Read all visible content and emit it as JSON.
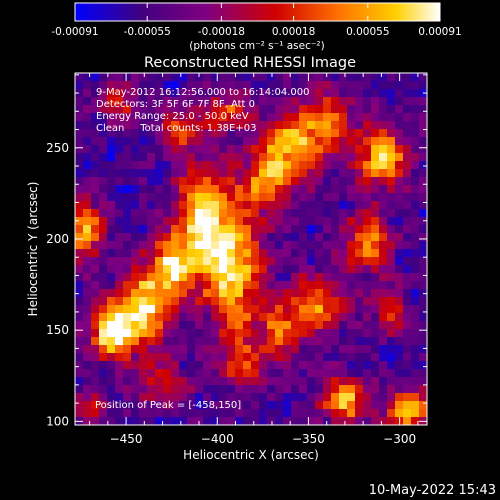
{
  "chart_data": {
    "type": "heatmap",
    "title": "Reconstructed RHESSI Image",
    "xlabel": "Heliocentric X (arcsec)",
    "ylabel": "Heliocentric Y (arcsec)",
    "xlim": [
      -478,
      -285
    ],
    "ylim": [
      98,
      291
    ],
    "x_ticks": [
      -450,
      -400,
      -350,
      -300
    ],
    "y_ticks": [
      100,
      150,
      200,
      250
    ],
    "colorbar": {
      "range": [
        -0.00091,
        0.00091
      ],
      "tick_values": [
        -0.00091,
        -0.00055,
        -0.00018,
        0.00018,
        0.00055,
        0.00091
      ],
      "tick_labels": [
        "-0.00091",
        "-0.00055",
        "-0.00018",
        "0.00018",
        "0.00055",
        "0.00091"
      ],
      "units_label": "(photons cm⁻² s⁻¹ asec⁻²)",
      "colors": [
        "#0000ff",
        "#400080",
        "#800080",
        "#d00000",
        "#ff7000",
        "#ffd000",
        "#ffffff"
      ]
    },
    "annotations": [
      "9-May-2012 16:12:56.000 to 16:14:04.000",
      "Detectors: 3F 5F 6F 7F 8F, Att 0",
      "Energy Range: 25.0 - 50.0 keV",
      "Clean     Total counts: 1.38E+03"
    ],
    "peak_label": "Position of Peak = [-458,150]",
    "peak_position": [
      -458,
      150
    ],
    "blobs": [
      {
        "x": -458,
        "y": 150,
        "sx": 9,
        "sy": 11,
        "a": 1.0
      },
      {
        "x": -440,
        "y": 162,
        "sx": 10,
        "sy": 16,
        "a": 0.85
      },
      {
        "x": -425,
        "y": 185,
        "sx": 9,
        "sy": 12,
        "a": 0.75
      },
      {
        "x": -408,
        "y": 210,
        "sx": 10,
        "sy": 22,
        "a": 0.95
      },
      {
        "x": -390,
        "y": 180,
        "sx": 11,
        "sy": 26,
        "a": 0.85
      },
      {
        "x": -375,
        "y": 230,
        "sx": 9,
        "sy": 12,
        "a": 0.6
      },
      {
        "x": -360,
        "y": 250,
        "sx": 12,
        "sy": 14,
        "a": 0.8
      },
      {
        "x": -340,
        "y": 265,
        "sx": 10,
        "sy": 12,
        "a": 0.55
      },
      {
        "x": -310,
        "y": 245,
        "sx": 10,
        "sy": 12,
        "a": 0.9
      },
      {
        "x": -318,
        "y": 198,
        "sx": 9,
        "sy": 11,
        "a": 0.75
      },
      {
        "x": -345,
        "y": 165,
        "sx": 11,
        "sy": 11,
        "a": 0.7
      },
      {
        "x": -365,
        "y": 150,
        "sx": 8,
        "sy": 10,
        "a": 0.6
      },
      {
        "x": -330,
        "y": 112,
        "sx": 9,
        "sy": 9,
        "a": 0.85
      },
      {
        "x": -295,
        "y": 105,
        "sx": 8,
        "sy": 9,
        "a": 0.85
      },
      {
        "x": -305,
        "y": 160,
        "sx": 7,
        "sy": 9,
        "a": 0.55
      },
      {
        "x": -472,
        "y": 205,
        "sx": 7,
        "sy": 12,
        "a": 0.75
      },
      {
        "x": -455,
        "y": 275,
        "sx": 8,
        "sy": 8,
        "a": 0.5
      },
      {
        "x": -420,
        "y": 260,
        "sx": 10,
        "sy": 8,
        "a": 0.5
      },
      {
        "x": -395,
        "y": 270,
        "sx": 9,
        "sy": 8,
        "a": 0.55
      },
      {
        "x": -430,
        "y": 120,
        "sx": 10,
        "sy": 8,
        "a": 0.5
      },
      {
        "x": -385,
        "y": 130,
        "sx": 9,
        "sy": 9,
        "a": 0.45
      },
      {
        "x": -470,
        "y": 108,
        "sx": 7,
        "sy": 7,
        "a": 0.4
      }
    ]
  },
  "footer": {
    "timestamp": "10-May-2022 15:43"
  }
}
